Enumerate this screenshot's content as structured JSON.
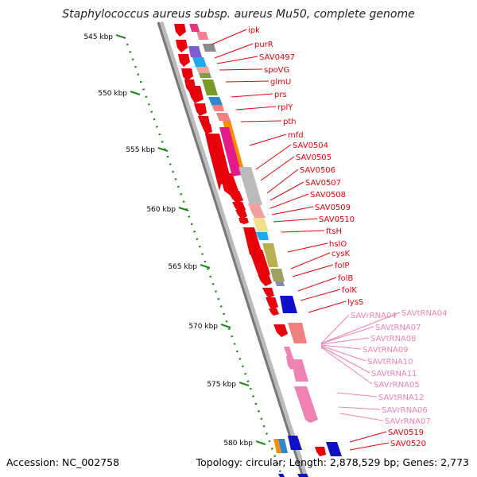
{
  "title": "Staphylococcus aureus subsp. aureus Mu50, complete genome",
  "footer": {
    "accession": "Accession: NC_002758",
    "topology": "Topology: circular; Length: 2,878,529 bp; Genes: 2,773"
  },
  "kbp_ticks": [
    "545 kbp",
    "550 kbp",
    "555 kbp",
    "560 kbp",
    "565 kbp",
    "570 kbp",
    "575 kbp",
    "580 kbp"
  ],
  "genes_red": [
    "ipk",
    "purR",
    "SAV0497",
    "spoVG",
    "glmU",
    "prs",
    "rplY",
    "pth",
    "mfd",
    "SAV0504",
    "SAV0505",
    "SAV0506",
    "SAV0507",
    "SAV0508",
    "SAV0509",
    "SAV0510",
    "ftsH",
    "hslO",
    "cysK",
    "folP",
    "folB",
    "folK",
    "lysS"
  ],
  "genes_pink": [
    "SAVrRNA04",
    "SAVtRNA04",
    "SAVtRNA07",
    "SAVtRNA08",
    "SAVtRNA09",
    "SAVtRNA10",
    "SAVtRNA11",
    "SAVrRNA05",
    "SAVtRNA12",
    "SAVrRNA06",
    "SAVrRNA07"
  ],
  "genes_bottom": [
    "SAV0519",
    "SAV0520"
  ],
  "colors": {
    "red": "#e8000b",
    "pink": "#ee82b4",
    "green": "#1a8a1a",
    "backbone": "#888888"
  }
}
